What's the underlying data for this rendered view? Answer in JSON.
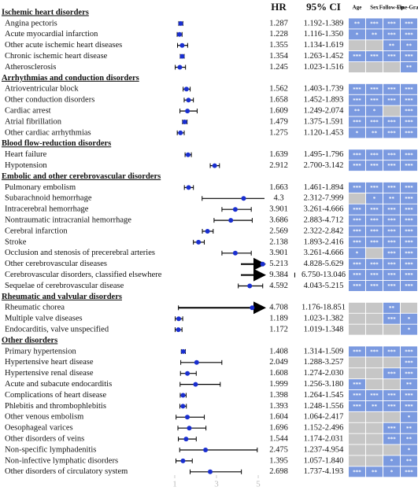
{
  "chart_data": {
    "type": "forest",
    "xlim": [
      0.85,
      5.3
    ],
    "xticks": [
      1,
      3,
      5
    ],
    "columns": {
      "hr": "HR",
      "ci": "95% CI",
      "sig": [
        "Age",
        "Sex",
        "Follow-Up",
        "Fine-Gray"
      ]
    },
    "point_color": "#1a2fd0",
    "line_color": "#000",
    "sig_color": "#7b9ae0",
    "nonsig_color": "#c6c6c6",
    "groups": [
      {
        "name": "Ischemic heart disorders",
        "rows": [
          {
            "label": "Angina pectoris",
            "hr": 1.287,
            "ci": "1.192-1.389",
            "low": 1.192,
            "high": 1.389,
            "sig": [
              "**",
              "***",
              "***",
              "***"
            ]
          },
          {
            "label": "Acute myocardial infarction",
            "hr": 1.228,
            "ci": "1.116-1.350",
            "low": 1.116,
            "high": 1.35,
            "sig": [
              "*",
              "**",
              "***",
              "***"
            ]
          },
          {
            "label": "Other acute ischemic heart diseases",
            "hr": 1.355,
            "ci": "1.134-1.619",
            "low": 1.134,
            "high": 1.619,
            "sig": [
              null,
              null,
              "**",
              "**"
            ]
          },
          {
            "label": "Chronic ischemic heart disease",
            "hr": 1.354,
            "ci": "1.263-1.452",
            "low": 1.263,
            "high": 1.452,
            "sig": [
              "***",
              "***",
              "***",
              "***"
            ]
          },
          {
            "label": "Atherosclerosis",
            "hr": 1.245,
            "ci": "1.023-1.516",
            "low": 1.023,
            "high": 1.516,
            "sig": [
              null,
              null,
              null,
              "**"
            ]
          }
        ]
      },
      {
        "name": "Arrhythmias and conduction disorders",
        "rows": [
          {
            "label": "Atrioventricular block",
            "hr": 1.562,
            "ci": "1.403-1.739",
            "low": 1.403,
            "high": 1.739,
            "sig": [
              "***",
              "***",
              "***",
              "***"
            ]
          },
          {
            "label": "Other conduction disorders",
            "hr": 1.658,
            "ci": "1.452-1.893",
            "low": 1.452,
            "high": 1.893,
            "sig": [
              "***",
              "***",
              "***",
              "***"
            ]
          },
          {
            "label": "Cardiac arrest",
            "hr": 1.609,
            "ci": "1.249-2.074",
            "low": 1.249,
            "high": 2.074,
            "sig": [
              "**",
              "*",
              null,
              "***"
            ]
          },
          {
            "label": "Atrial fibrillation",
            "hr": 1.479,
            "ci": "1.375-1.591",
            "low": 1.375,
            "high": 1.591,
            "sig": [
              "***",
              "***",
              "***",
              "***"
            ]
          },
          {
            "label": "Other cardiac arrhythmias",
            "hr": 1.275,
            "ci": "1.120-1.453",
            "low": 1.12,
            "high": 1.453,
            "sig": [
              "*",
              "**",
              "***",
              "***"
            ]
          }
        ]
      },
      {
        "name": "Blood flow-reduction disorders",
        "rows": [
          {
            "label": "Heart failure",
            "hr": 1.639,
            "ci": "1.495-1.796",
            "low": 1.495,
            "high": 1.796,
            "sig": [
              "***",
              "***",
              "***",
              "***"
            ]
          },
          {
            "label": "Hypotension",
            "hr": 2.912,
            "ci": "2.700-3.142",
            "low": 2.7,
            "high": 3.142,
            "sig": [
              "***",
              "***",
              "***",
              "***"
            ]
          }
        ]
      },
      {
        "name": "Embolic and other cerebrovascular disorders",
        "rows": [
          {
            "label": "Pulmonary embolism",
            "hr": 1.663,
            "ci": "1.461-1.894",
            "low": 1.461,
            "high": 1.894,
            "sig": [
              "***",
              "***",
              "***",
              "***"
            ]
          },
          {
            "label": "Subarachnoid hemorrhage",
            "hr": 4.3,
            "ci": "2.312-7.999",
            "low": 2.312,
            "high": 7.999,
            "sig": [
              null,
              "*",
              "**",
              "***"
            ]
          },
          {
            "label": "Intracerebral hemorrhage",
            "hr": 3.901,
            "ci": "3.261-4.666",
            "low": 3.261,
            "high": 4.666,
            "sig": [
              "***",
              "***",
              "***",
              "***"
            ]
          },
          {
            "label": "Nontraumatic intracranial hemorrhage",
            "hr": 3.686,
            "ci": "2.883-4.712",
            "low": 2.883,
            "high": 4.712,
            "sig": [
              "***",
              "***",
              "***",
              "***"
            ]
          },
          {
            "label": "Cerebral infarction",
            "hr": 2.569,
            "ci": "2.322-2.842",
            "low": 2.322,
            "high": 2.842,
            "sig": [
              "***",
              "***",
              "***",
              "***"
            ]
          },
          {
            "label": "Stroke",
            "hr": 2.138,
            "ci": "1.893-2.416",
            "low": 1.893,
            "high": 2.416,
            "sig": [
              "***",
              "***",
              "***",
              "***"
            ]
          },
          {
            "label": "Occlusion and stenosis of precerebral arteries",
            "hr": 3.901,
            "ci": "3.261-4.666",
            "low": 3.261,
            "high": 4.666,
            "sig": [
              "*",
              null,
              "***",
              "***"
            ]
          },
          {
            "label": "Other cerebrovascular diseases",
            "hr": 5.213,
            "ci": "4.828-5.629",
            "low": 4.828,
            "high": 5.629,
            "sig": [
              "***",
              "***",
              "***",
              "***"
            ]
          },
          {
            "label": "Cerebrovascular disorders, classified elsewhere",
            "hr": 9.384,
            "ci": "6.750-13.046",
            "low": 6.75,
            "high": 13.046,
            "sig": [
              "***",
              "***",
              "***",
              "***"
            ]
          },
          {
            "label": "Sequelae of cerebrovascular disease",
            "hr": 4.592,
            "ci": "4.043-5.215",
            "low": 4.043,
            "high": 5.215,
            "sig": [
              "***",
              "***",
              "***",
              "***"
            ]
          }
        ]
      },
      {
        "name": "Rheumatic and valvular disorders",
        "rows": [
          {
            "label": "Rheumatic chorea",
            "hr": 4.708,
            "ci": "1.176-18.851",
            "low": 1.176,
            "high": 18.851,
            "sig": [
              null,
              null,
              "**",
              null
            ]
          },
          {
            "label": "Multiple valve diseases",
            "hr": 1.189,
            "ci": "1.023-1.382",
            "low": 1.023,
            "high": 1.382,
            "sig": [
              null,
              null,
              "***",
              "*"
            ]
          },
          {
            "label": "Endocarditis, valve unspecified",
            "hr": 1.172,
            "ci": "1.019-1.348",
            "low": 1.019,
            "high": 1.348,
            "sig": [
              null,
              null,
              null,
              "*"
            ]
          }
        ]
      },
      {
        "name": "Other disorders",
        "rows": [
          {
            "label": "Primary hypertension",
            "hr": 1.408,
            "ci": "1.314-1.509",
            "low": 1.314,
            "high": 1.509,
            "sig": [
              "***",
              "***",
              "***",
              "***"
            ]
          },
          {
            "label": "Hypertensive heart disease",
            "hr": 2.049,
            "ci": "1.288-3.257",
            "low": 1.288,
            "high": 3.257,
            "sig": [
              null,
              null,
              null,
              "***"
            ]
          },
          {
            "label": "Hypertensive renal disease",
            "hr": 1.608,
            "ci": "1.274-2.030",
            "low": 1.274,
            "high": 2.03,
            "sig": [
              null,
              null,
              "***",
              "***"
            ]
          },
          {
            "label": "Acute and subacute endocarditis",
            "hr": 1.999,
            "ci": "1.256-3.180",
            "low": 1.256,
            "high": 3.18,
            "sig": [
              "***",
              null,
              null,
              "**"
            ]
          },
          {
            "label": "Complications of heart disease",
            "hr": 1.398,
            "ci": "1.264-1.545",
            "low": 1.264,
            "high": 1.545,
            "sig": [
              "***",
              "***",
              "***",
              "***"
            ]
          },
          {
            "label": "Phlebitis and thrombophlebitis",
            "hr": 1.393,
            "ci": "1.248-1.556",
            "low": 1.248,
            "high": 1.556,
            "sig": [
              "***",
              "**",
              "***",
              "***"
            ]
          },
          {
            "label": "Other venous embolism",
            "hr": 1.604,
            "ci": "1.064-2.417",
            "low": 1.064,
            "high": 2.417,
            "sig": [
              null,
              null,
              null,
              "*"
            ]
          },
          {
            "label": "Oesophageal varices",
            "hr": 1.696,
            "ci": "1.152-2.496",
            "low": 1.152,
            "high": 2.496,
            "sig": [
              null,
              null,
              "***",
              "**"
            ]
          },
          {
            "label": "Other disorders of veins",
            "hr": 1.544,
            "ci": "1.174-2.031",
            "low": 1.174,
            "high": 2.031,
            "sig": [
              null,
              null,
              "***",
              "**"
            ]
          },
          {
            "label": "Non-specific lymphadenitis",
            "hr": 2.475,
            "ci": "1.237-4.954",
            "low": 1.237,
            "high": 4.954,
            "sig": [
              null,
              null,
              null,
              "*"
            ]
          },
          {
            "label": "Non-infective lymphatic disorders",
            "hr": 1.395,
            "ci": "1.057-1.840",
            "low": 1.057,
            "high": 1.84,
            "sig": [
              null,
              null,
              "*",
              "**"
            ]
          },
          {
            "label": "Other disorders of circulatory system",
            "hr": 2.698,
            "ci": "1.737-4.193",
            "low": 1.737,
            "high": 4.193,
            "sig": [
              "***",
              "**",
              "*",
              "***"
            ]
          }
        ]
      }
    ]
  }
}
